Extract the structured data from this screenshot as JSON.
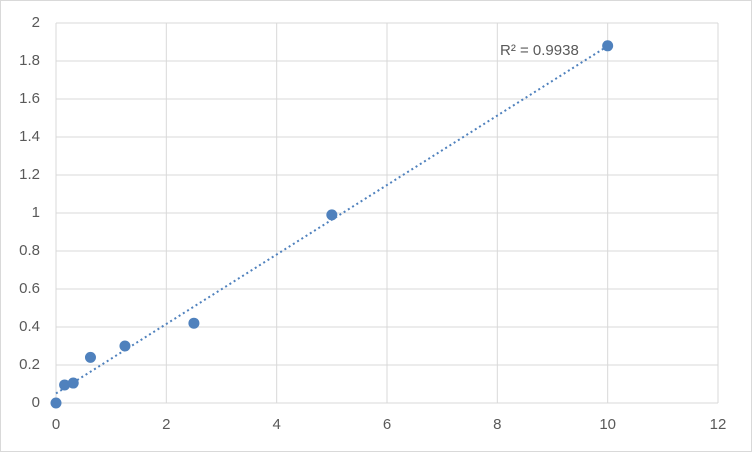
{
  "chart_data": {
    "type": "scatter",
    "series": [
      {
        "color": "#4f81bd",
        "x": [
          0,
          0.156,
          0.3125,
          0.625,
          1.25,
          2.5,
          5,
          10
        ],
        "values": [
          0,
          0.095,
          0.105,
          0.24,
          0.3,
          0.42,
          0.99,
          1.88
        ]
      }
    ],
    "trendline": {
      "type": "linear",
      "color": "#4f81bd",
      "label": "R² = 0.9938"
    },
    "xlim": [
      0,
      12
    ],
    "xticks": [
      0,
      2,
      4,
      6,
      8,
      10,
      12
    ],
    "ylim": [
      0,
      2
    ],
    "yticks": [
      0,
      0.2,
      0.4,
      0.6,
      0.8,
      1,
      1.2,
      1.4,
      1.6,
      1.8,
      2
    ],
    "grid": true
  }
}
